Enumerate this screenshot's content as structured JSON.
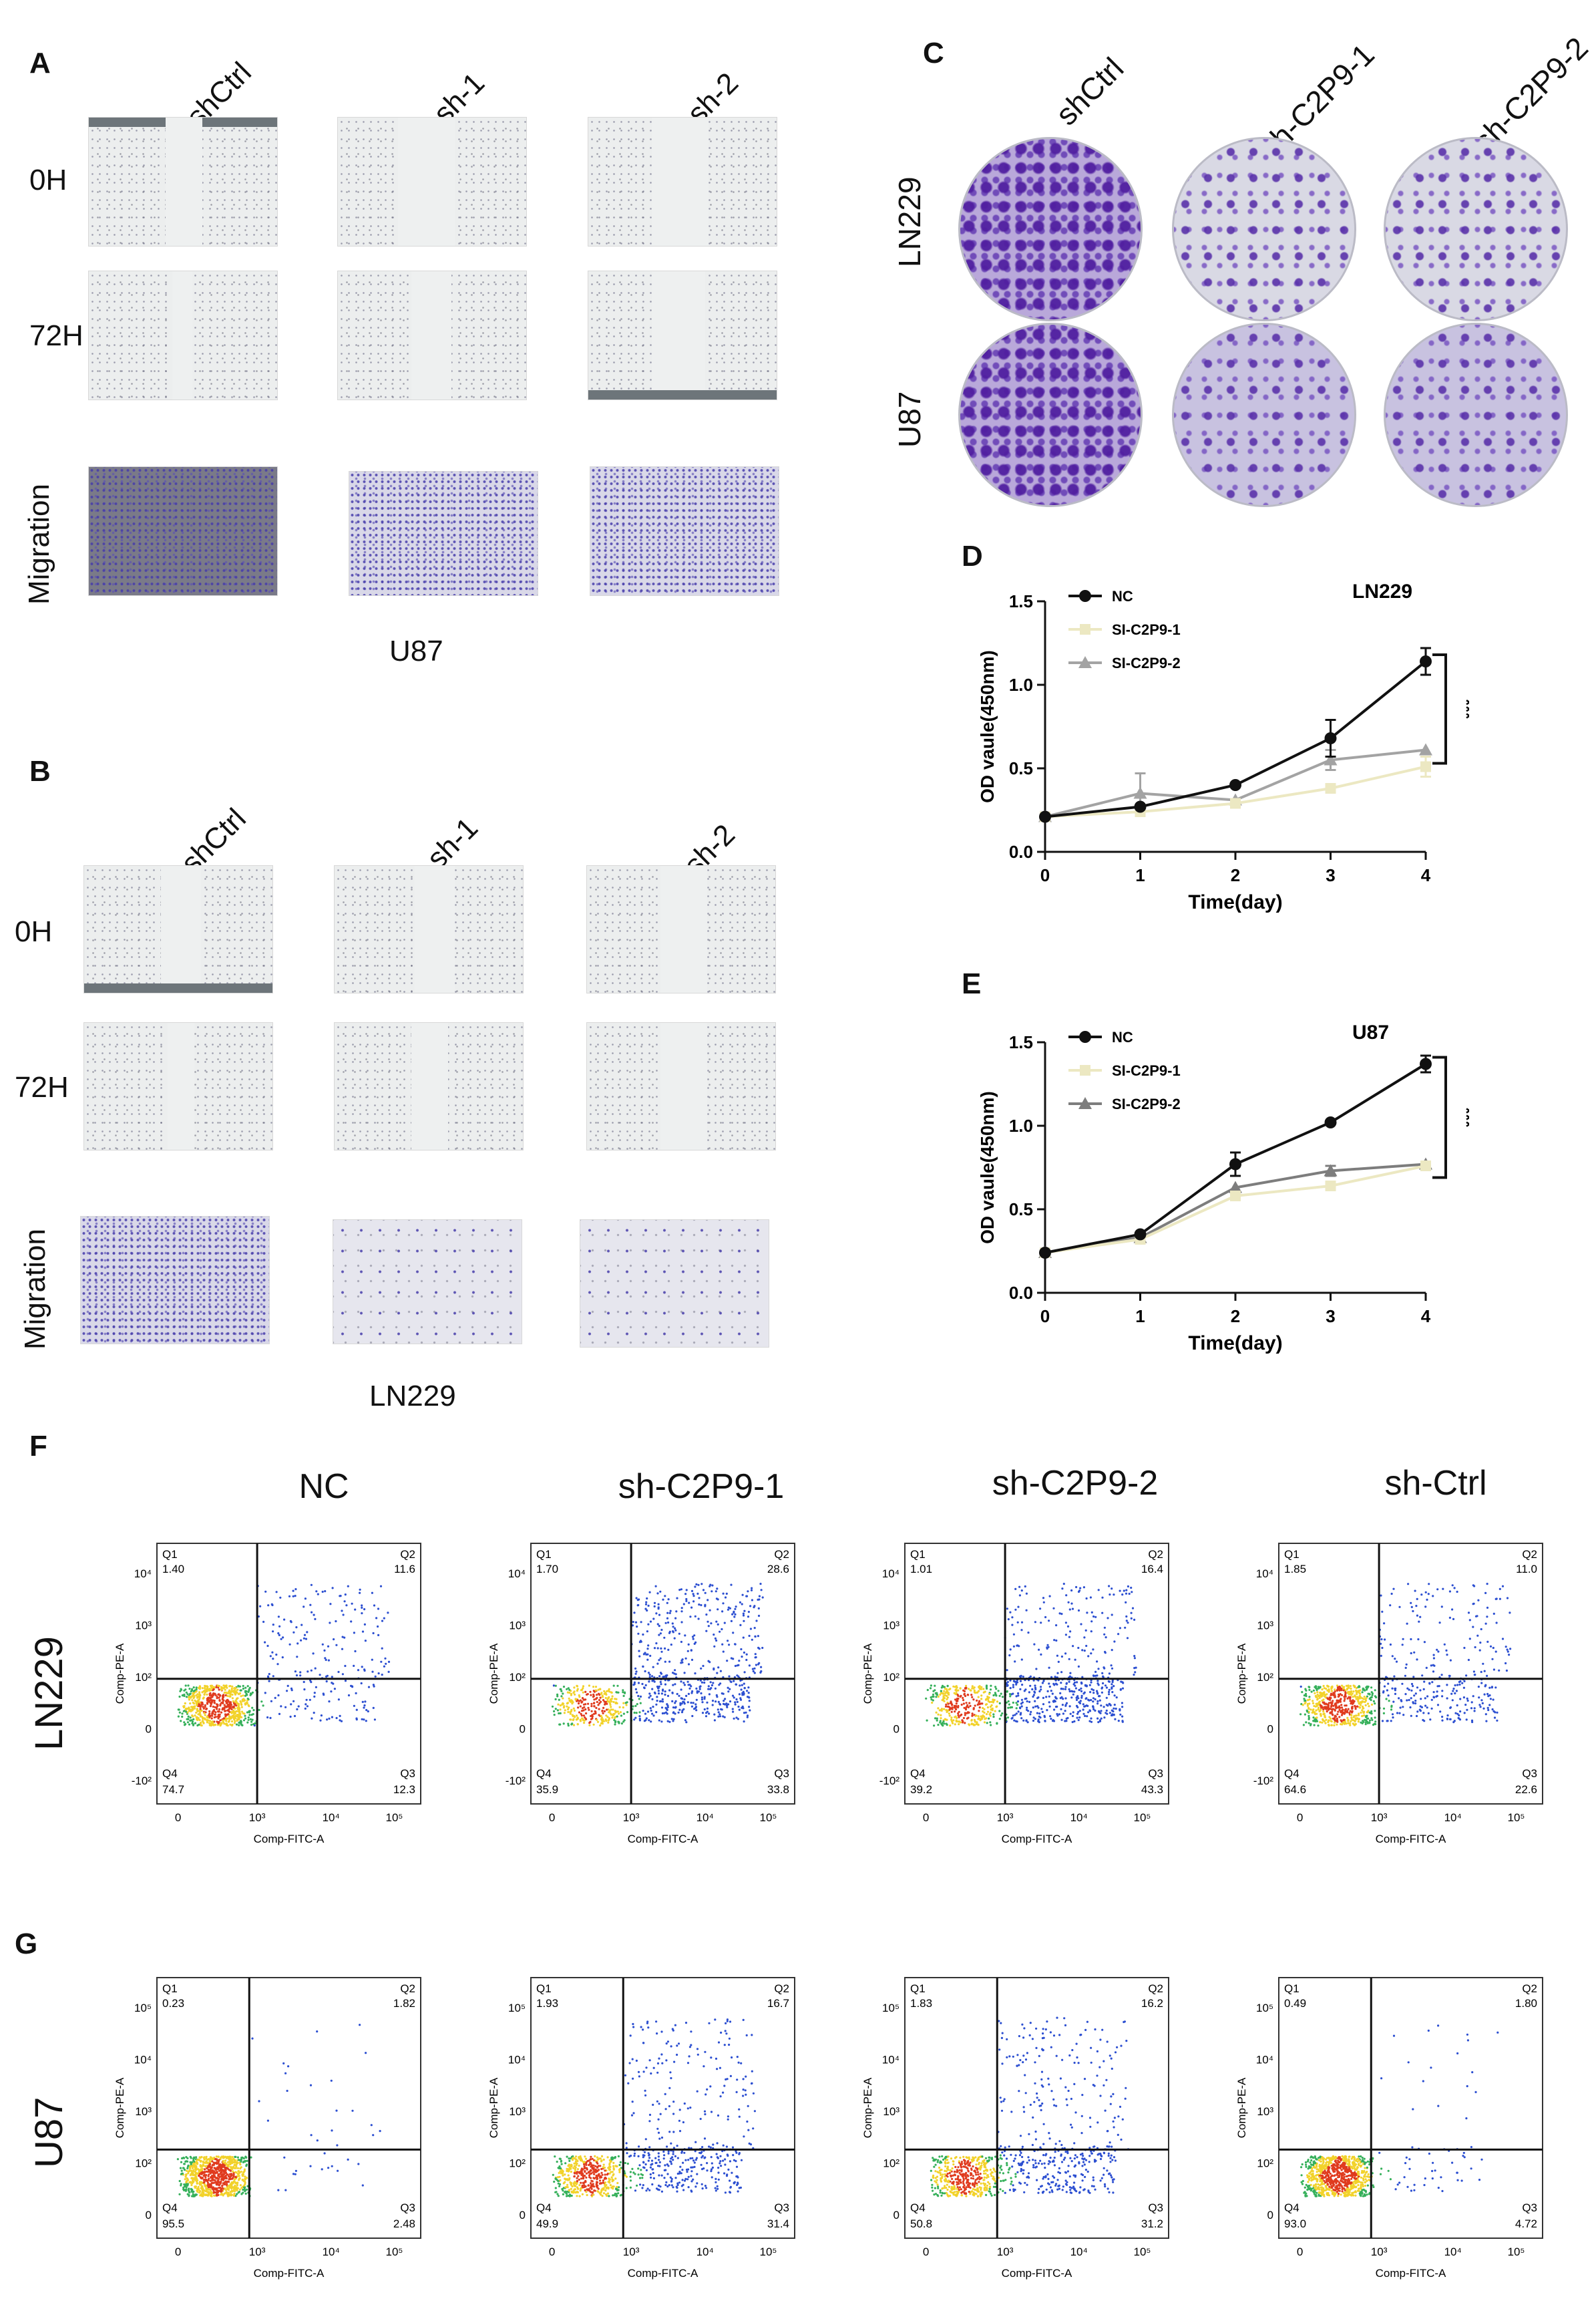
{
  "panel_letters": {
    "A": "A",
    "B": "B",
    "C": "C",
    "D": "D",
    "E": "E",
    "F": "F",
    "G": "G"
  },
  "panel_a": {
    "columns": [
      "shCtrl",
      "sh-1",
      "sh-2"
    ],
    "rows": [
      "0H",
      "72H",
      "Migration"
    ],
    "caption": "U87"
  },
  "panel_b": {
    "columns": [
      "shCtrl",
      "sh-1",
      "sh-2"
    ],
    "rows": [
      "0H",
      "72H",
      "Migration"
    ],
    "caption": "LN229"
  },
  "panel_c": {
    "columns": [
      "shCtrl",
      "sh-C2P9-1",
      "sh-C2P9-2"
    ],
    "rows": [
      "LN229",
      "U87"
    ]
  },
  "chart_data": [
    {
      "panel": "D",
      "type": "line",
      "title": "LN229",
      "xlabel": "Time(day)",
      "ylabel": "OD vaule(450nm)",
      "x": [
        0,
        1,
        2,
        3,
        4
      ],
      "xlim": [
        0,
        4
      ],
      "ylim": [
        0.0,
        1.5
      ],
      "yticks": [
        "0.0",
        "0.5",
        "1.0",
        "1.5"
      ],
      "xticks": [
        "0",
        "1",
        "2",
        "3",
        "4"
      ],
      "significance": "***",
      "series": [
        {
          "name": "NC",
          "values": [
            0.21,
            0.27,
            0.4,
            0.68,
            1.14
          ],
          "error": [
            0.0,
            0.0,
            0.0,
            0.11,
            0.08
          ],
          "color": "#111111",
          "marker": "circle"
        },
        {
          "name": "SI-C2P9-1",
          "values": [
            0.21,
            0.24,
            0.29,
            0.38,
            0.51
          ],
          "error": [
            0.0,
            0.0,
            0.0,
            0.0,
            0.06
          ],
          "color": "#ece8c2",
          "marker": "square"
        },
        {
          "name": "SI-C2P9-2",
          "values": [
            0.21,
            0.35,
            0.31,
            0.55,
            0.61
          ],
          "error": [
            0.0,
            0.12,
            0.0,
            0.06,
            0.0
          ],
          "color": "#a3a3a3",
          "marker": "triangle"
        }
      ]
    },
    {
      "panel": "E",
      "type": "line",
      "title": "U87",
      "xlabel": "Time(day)",
      "ylabel": "OD vaule(450nm)",
      "x": [
        0,
        1,
        2,
        3,
        4
      ],
      "xlim": [
        0,
        4
      ],
      "ylim": [
        0.0,
        1.5
      ],
      "yticks": [
        "0.0",
        "0.5",
        "1.0",
        "1.5"
      ],
      "xticks": [
        "0",
        "1",
        "2",
        "3",
        "4"
      ],
      "significance": "***",
      "series": [
        {
          "name": "NC",
          "values": [
            0.24,
            0.35,
            0.77,
            1.02,
            1.37
          ],
          "error": [
            0.0,
            0.0,
            0.07,
            0.0,
            0.05
          ],
          "color": "#111111",
          "marker": "circle"
        },
        {
          "name": "SI-C2P9-1",
          "values": [
            0.24,
            0.32,
            0.58,
            0.64,
            0.76
          ],
          "error": [
            0.0,
            0.0,
            0.0,
            0.0,
            0.0
          ],
          "color": "#ece8c2",
          "marker": "square"
        },
        {
          "name": "SI-C2P9-2",
          "values": [
            0.24,
            0.33,
            0.63,
            0.73,
            0.77
          ],
          "error": [
            0.0,
            0.0,
            0.0,
            0.03,
            0.0
          ],
          "color": "#7d7d7d",
          "marker": "triangle"
        }
      ]
    }
  ],
  "flow": {
    "xlabel": "Comp-FITC-A",
    "ylabel": "Comp-PE-A",
    "quadrants": [
      "Q1",
      "Q2",
      "Q3",
      "Q4"
    ],
    "f_columns": [
      "NC",
      "sh-C2P9-1",
      "sh-C2P9-2",
      "sh-Ctrl"
    ],
    "f_row": "LN229",
    "g_row": "U87",
    "f_values": [
      {
        "q1": "1.40",
        "q2": "11.6",
        "q3": "12.3",
        "q4": "74.7"
      },
      {
        "q1": "1.70",
        "q2": "28.6",
        "q3": "33.8",
        "q4": "35.9"
      },
      {
        "q1": "1.01",
        "q2": "16.4",
        "q3": "43.3",
        "q4": "39.2"
      },
      {
        "q1": "1.85",
        "q2": "11.0",
        "q3": "22.6",
        "q4": "64.6"
      }
    ],
    "g_values": [
      {
        "q1": "0.23",
        "q2": "1.82",
        "q3": "2.48",
        "q4": "95.5"
      },
      {
        "q1": "1.93",
        "q2": "16.7",
        "q3": "31.4",
        "q4": "49.9"
      },
      {
        "q1": "1.83",
        "q2": "16.2",
        "q3": "31.2",
        "q4": "50.8"
      },
      {
        "q1": "0.49",
        "q2": "1.80",
        "q3": "4.72",
        "q4": "93.0"
      }
    ],
    "f_yticks": [
      "10⁴",
      "10³",
      "10²",
      "0",
      "-10²"
    ],
    "g_yticks": [
      "10⁵",
      "10⁴",
      "10³",
      "10²",
      "0"
    ],
    "xticks": [
      "0",
      "10³",
      "10⁴",
      "10⁵"
    ]
  }
}
